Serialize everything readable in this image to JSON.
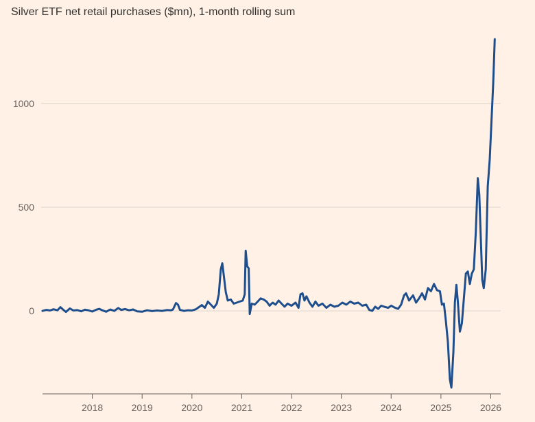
{
  "chart_data": {
    "type": "line",
    "title": "Silver ETF net retail purchases ($mn), 1-month rolling sum",
    "xlabel": "",
    "ylabel": "",
    "xlim": [
      2017.0,
      2026.2
    ],
    "ylim": [
      -400,
      1350
    ],
    "y_ticks": [
      0,
      500,
      1000
    ],
    "x_ticks": [
      2018,
      2019,
      2020,
      2021,
      2022,
      2023,
      2024,
      2025,
      2026
    ],
    "grid": true,
    "colors": {
      "line": "#1f4e8c",
      "grid": "#ddd5cc",
      "axis": "#66605c",
      "background": "#fff1e5"
    },
    "series": [
      {
        "values": [
          [
            2017.0,
            0
          ],
          [
            2017.08,
            5
          ],
          [
            2017.15,
            2
          ],
          [
            2017.22,
            8
          ],
          [
            2017.3,
            3
          ],
          [
            2017.36,
            18
          ],
          [
            2017.42,
            5
          ],
          [
            2017.47,
            -5
          ],
          [
            2017.55,
            12
          ],
          [
            2017.62,
            2
          ],
          [
            2017.7,
            4
          ],
          [
            2017.78,
            -2
          ],
          [
            2017.85,
            6
          ],
          [
            2017.92,
            3
          ],
          [
            2018.0,
            -3
          ],
          [
            2018.08,
            6
          ],
          [
            2018.14,
            10
          ],
          [
            2018.2,
            3
          ],
          [
            2018.28,
            -4
          ],
          [
            2018.36,
            7
          ],
          [
            2018.44,
            0
          ],
          [
            2018.52,
            14
          ],
          [
            2018.58,
            5
          ],
          [
            2018.66,
            9
          ],
          [
            2018.74,
            3
          ],
          [
            2018.82,
            7
          ],
          [
            2018.9,
            -2
          ],
          [
            2019.0,
            -4
          ],
          [
            2019.1,
            3
          ],
          [
            2019.2,
            -1
          ],
          [
            2019.3,
            2
          ],
          [
            2019.4,
            0
          ],
          [
            2019.5,
            4
          ],
          [
            2019.58,
            3
          ],
          [
            2019.62,
            7
          ],
          [
            2019.68,
            38
          ],
          [
            2019.72,
            30
          ],
          [
            2019.76,
            5
          ],
          [
            2019.84,
            0
          ],
          [
            2019.92,
            3
          ],
          [
            2020.0,
            2
          ],
          [
            2020.08,
            8
          ],
          [
            2020.14,
            18
          ],
          [
            2020.2,
            28
          ],
          [
            2020.26,
            15
          ],
          [
            2020.32,
            45
          ],
          [
            2020.38,
            30
          ],
          [
            2020.44,
            15
          ],
          [
            2020.5,
            35
          ],
          [
            2020.54,
            80
          ],
          [
            2020.58,
            200
          ],
          [
            2020.61,
            230
          ],
          [
            2020.64,
            170
          ],
          [
            2020.68,
            90
          ],
          [
            2020.72,
            50
          ],
          [
            2020.78,
            55
          ],
          [
            2020.84,
            35
          ],
          [
            2020.9,
            40
          ],
          [
            2020.96,
            45
          ],
          [
            2021.02,
            50
          ],
          [
            2021.06,
            80
          ],
          [
            2021.08,
            290
          ],
          [
            2021.11,
            215
          ],
          [
            2021.14,
            205
          ],
          [
            2021.16,
            -15
          ],
          [
            2021.2,
            35
          ],
          [
            2021.26,
            30
          ],
          [
            2021.32,
            45
          ],
          [
            2021.38,
            60
          ],
          [
            2021.44,
            55
          ],
          [
            2021.5,
            45
          ],
          [
            2021.56,
            25
          ],
          [
            2021.62,
            40
          ],
          [
            2021.68,
            30
          ],
          [
            2021.74,
            50
          ],
          [
            2021.8,
            35
          ],
          [
            2021.86,
            20
          ],
          [
            2021.92,
            35
          ],
          [
            2022.0,
            25
          ],
          [
            2022.08,
            40
          ],
          [
            2022.14,
            15
          ],
          [
            2022.18,
            80
          ],
          [
            2022.22,
            85
          ],
          [
            2022.26,
            50
          ],
          [
            2022.3,
            70
          ],
          [
            2022.36,
            40
          ],
          [
            2022.42,
            20
          ],
          [
            2022.48,
            45
          ],
          [
            2022.54,
            25
          ],
          [
            2022.62,
            35
          ],
          [
            2022.7,
            15
          ],
          [
            2022.78,
            30
          ],
          [
            2022.86,
            20
          ],
          [
            2022.94,
            25
          ],
          [
            2023.02,
            40
          ],
          [
            2023.1,
            30
          ],
          [
            2023.18,
            45
          ],
          [
            2023.26,
            35
          ],
          [
            2023.34,
            40
          ],
          [
            2023.42,
            25
          ],
          [
            2023.5,
            30
          ],
          [
            2023.56,
            5
          ],
          [
            2023.62,
            0
          ],
          [
            2023.68,
            20
          ],
          [
            2023.74,
            10
          ],
          [
            2023.8,
            25
          ],
          [
            2023.86,
            20
          ],
          [
            2023.94,
            15
          ],
          [
            2024.0,
            25
          ],
          [
            2024.08,
            15
          ],
          [
            2024.14,
            10
          ],
          [
            2024.2,
            30
          ],
          [
            2024.26,
            75
          ],
          [
            2024.3,
            85
          ],
          [
            2024.36,
            50
          ],
          [
            2024.44,
            75
          ],
          [
            2024.5,
            40
          ],
          [
            2024.56,
            60
          ],
          [
            2024.62,
            85
          ],
          [
            2024.68,
            55
          ],
          [
            2024.74,
            110
          ],
          [
            2024.8,
            95
          ],
          [
            2024.86,
            130
          ],
          [
            2024.92,
            100
          ],
          [
            2024.98,
            95
          ],
          [
            2025.02,
            30
          ],
          [
            2025.06,
            35
          ],
          [
            2025.1,
            -50
          ],
          [
            2025.14,
            -150
          ],
          [
            2025.18,
            -330
          ],
          [
            2025.21,
            -370
          ],
          [
            2025.25,
            -200
          ],
          [
            2025.28,
            40
          ],
          [
            2025.31,
            125
          ],
          [
            2025.34,
            40
          ],
          [
            2025.38,
            -100
          ],
          [
            2025.42,
            -60
          ],
          [
            2025.46,
            60
          ],
          [
            2025.5,
            180
          ],
          [
            2025.54,
            190
          ],
          [
            2025.58,
            130
          ],
          [
            2025.62,
            180
          ],
          [
            2025.66,
            200
          ],
          [
            2025.7,
            380
          ],
          [
            2025.74,
            640
          ],
          [
            2025.77,
            560
          ],
          [
            2025.8,
            350
          ],
          [
            2025.83,
            150
          ],
          [
            2025.86,
            110
          ],
          [
            2025.9,
            200
          ],
          [
            2025.94,
            600
          ],
          [
            2025.98,
            730
          ],
          [
            2026.02,
            940
          ],
          [
            2026.05,
            1100
          ],
          [
            2026.08,
            1310
          ]
        ]
      }
    ]
  }
}
